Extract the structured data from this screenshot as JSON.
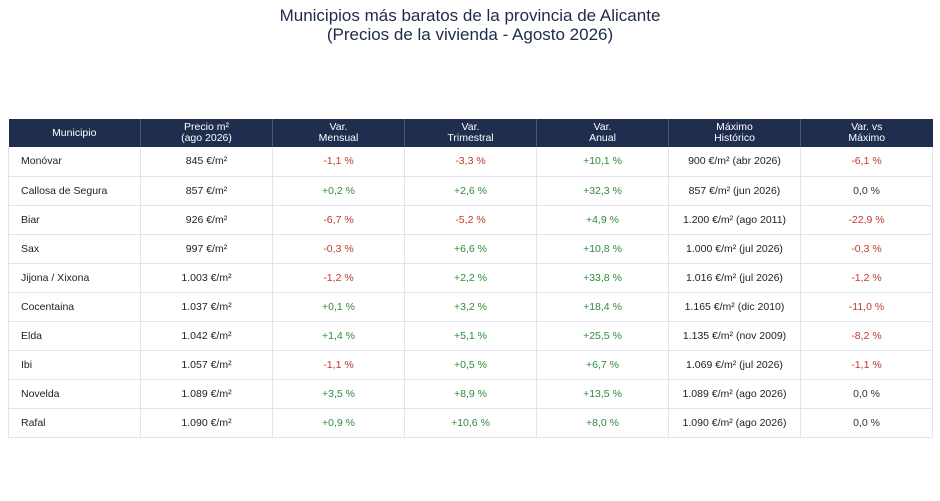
{
  "title": {
    "line1": "Municipios más baratos de la provincia de Alicante",
    "line2": "(Precios de la vivienda - Agosto 2026)"
  },
  "headers": [
    {
      "l1": "Municipio",
      "l2": ""
    },
    {
      "l1": "Precio m²",
      "l2": "(ago 2026)"
    },
    {
      "l1": "Var.",
      "l2": "Mensual"
    },
    {
      "l1": "Var.",
      "l2": "Trimestral"
    },
    {
      "l1": "Var.",
      "l2": "Anual"
    },
    {
      "l1": "Máximo",
      "l2": "Histórico"
    },
    {
      "l1": "Var. vs",
      "l2": "Máximo"
    }
  ],
  "colors": {
    "header_bg": "#1f2d4f",
    "negative": "#c0392b",
    "positive": "#2e8b3c"
  },
  "rows": [
    {
      "municipio": "Monóvar",
      "precio": "845 €/m²",
      "mensual": "-1,1 %",
      "trimestral": "-3,3 %",
      "anual": "+10,1 %",
      "maximo": "900 €/m² (abr 2026)",
      "vs_max": "-6,1 %"
    },
    {
      "municipio": "Callosa de Segura",
      "precio": "857 €/m²",
      "mensual": "+0,2 %",
      "trimestral": "+2,6 %",
      "anual": "+32,3 %",
      "maximo": "857 €/m² (jun 2026)",
      "vs_max": "0,0 %"
    },
    {
      "municipio": "Biar",
      "precio": "926 €/m²",
      "mensual": "-6,7 %",
      "trimestral": "-5,2 %",
      "anual": "+4,9 %",
      "maximo": "1.200 €/m² (ago 2011)",
      "vs_max": "-22,9 %"
    },
    {
      "municipio": "Sax",
      "precio": "997 €/m²",
      "mensual": "-0,3 %",
      "trimestral": "+6,6 %",
      "anual": "+10,8 %",
      "maximo": "1.000 €/m² (jul 2026)",
      "vs_max": "-0,3 %"
    },
    {
      "municipio": "Jijona / Xixona",
      "precio": "1.003 €/m²",
      "mensual": "-1,2 %",
      "trimestral": "+2,2 %",
      "anual": "+33,8 %",
      "maximo": "1.016 €/m² (jul 2026)",
      "vs_max": "-1,2 %"
    },
    {
      "municipio": "Cocentaina",
      "precio": "1.037 €/m²",
      "mensual": "+0,1 %",
      "trimestral": "+3,2 %",
      "anual": "+18,4 %",
      "maximo": "1.165 €/m² (dic 2010)",
      "vs_max": "-11,0 %"
    },
    {
      "municipio": "Elda",
      "precio": "1.042 €/m²",
      "mensual": "+1,4 %",
      "trimestral": "+5,1 %",
      "anual": "+25,5 %",
      "maximo": "1.135 €/m² (nov 2009)",
      "vs_max": "-8,2 %"
    },
    {
      "municipio": "Ibi",
      "precio": "1.057 €/m²",
      "mensual": "-1,1 %",
      "trimestral": "+0,5 %",
      "anual": "+6,7 %",
      "maximo": "1.069 €/m² (jul 2026)",
      "vs_max": "-1,1 %"
    },
    {
      "municipio": "Novelda",
      "precio": "1.089 €/m²",
      "mensual": "+3,5 %",
      "trimestral": "+8,9 %",
      "anual": "+13,5 %",
      "maximo": "1.089 €/m² (ago 2026)",
      "vs_max": "0,0 %"
    },
    {
      "municipio": "Rafal",
      "precio": "1.090 €/m²",
      "mensual": "+0,9 %",
      "trimestral": "+10,6 %",
      "anual": "+8,0 %",
      "maximo": "1.090 €/m² (ago 2026)",
      "vs_max": "0,0 %"
    }
  ]
}
